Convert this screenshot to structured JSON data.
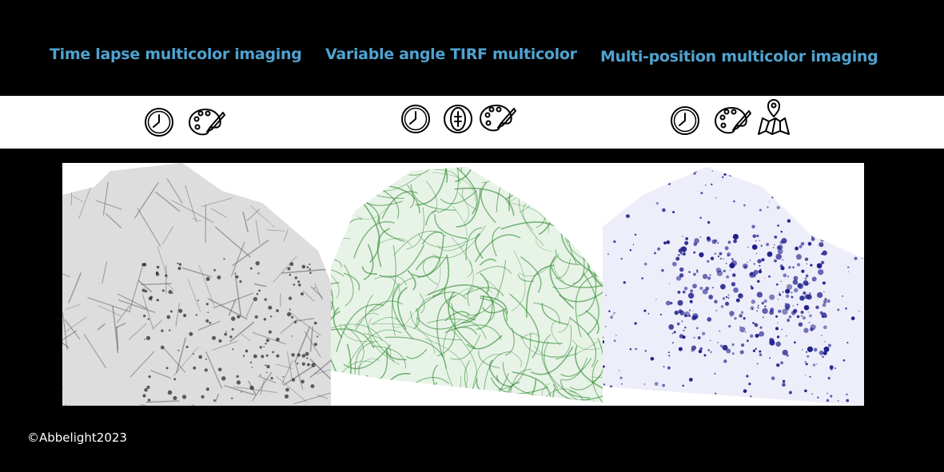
{
  "header": {
    "titles": [
      "Time lapse multicolor imaging",
      "Variable angle TIRF multicolor",
      "Multi-position multicolor imaging"
    ]
  },
  "footer": {
    "copyright": "©Abbelight2023"
  }
}
